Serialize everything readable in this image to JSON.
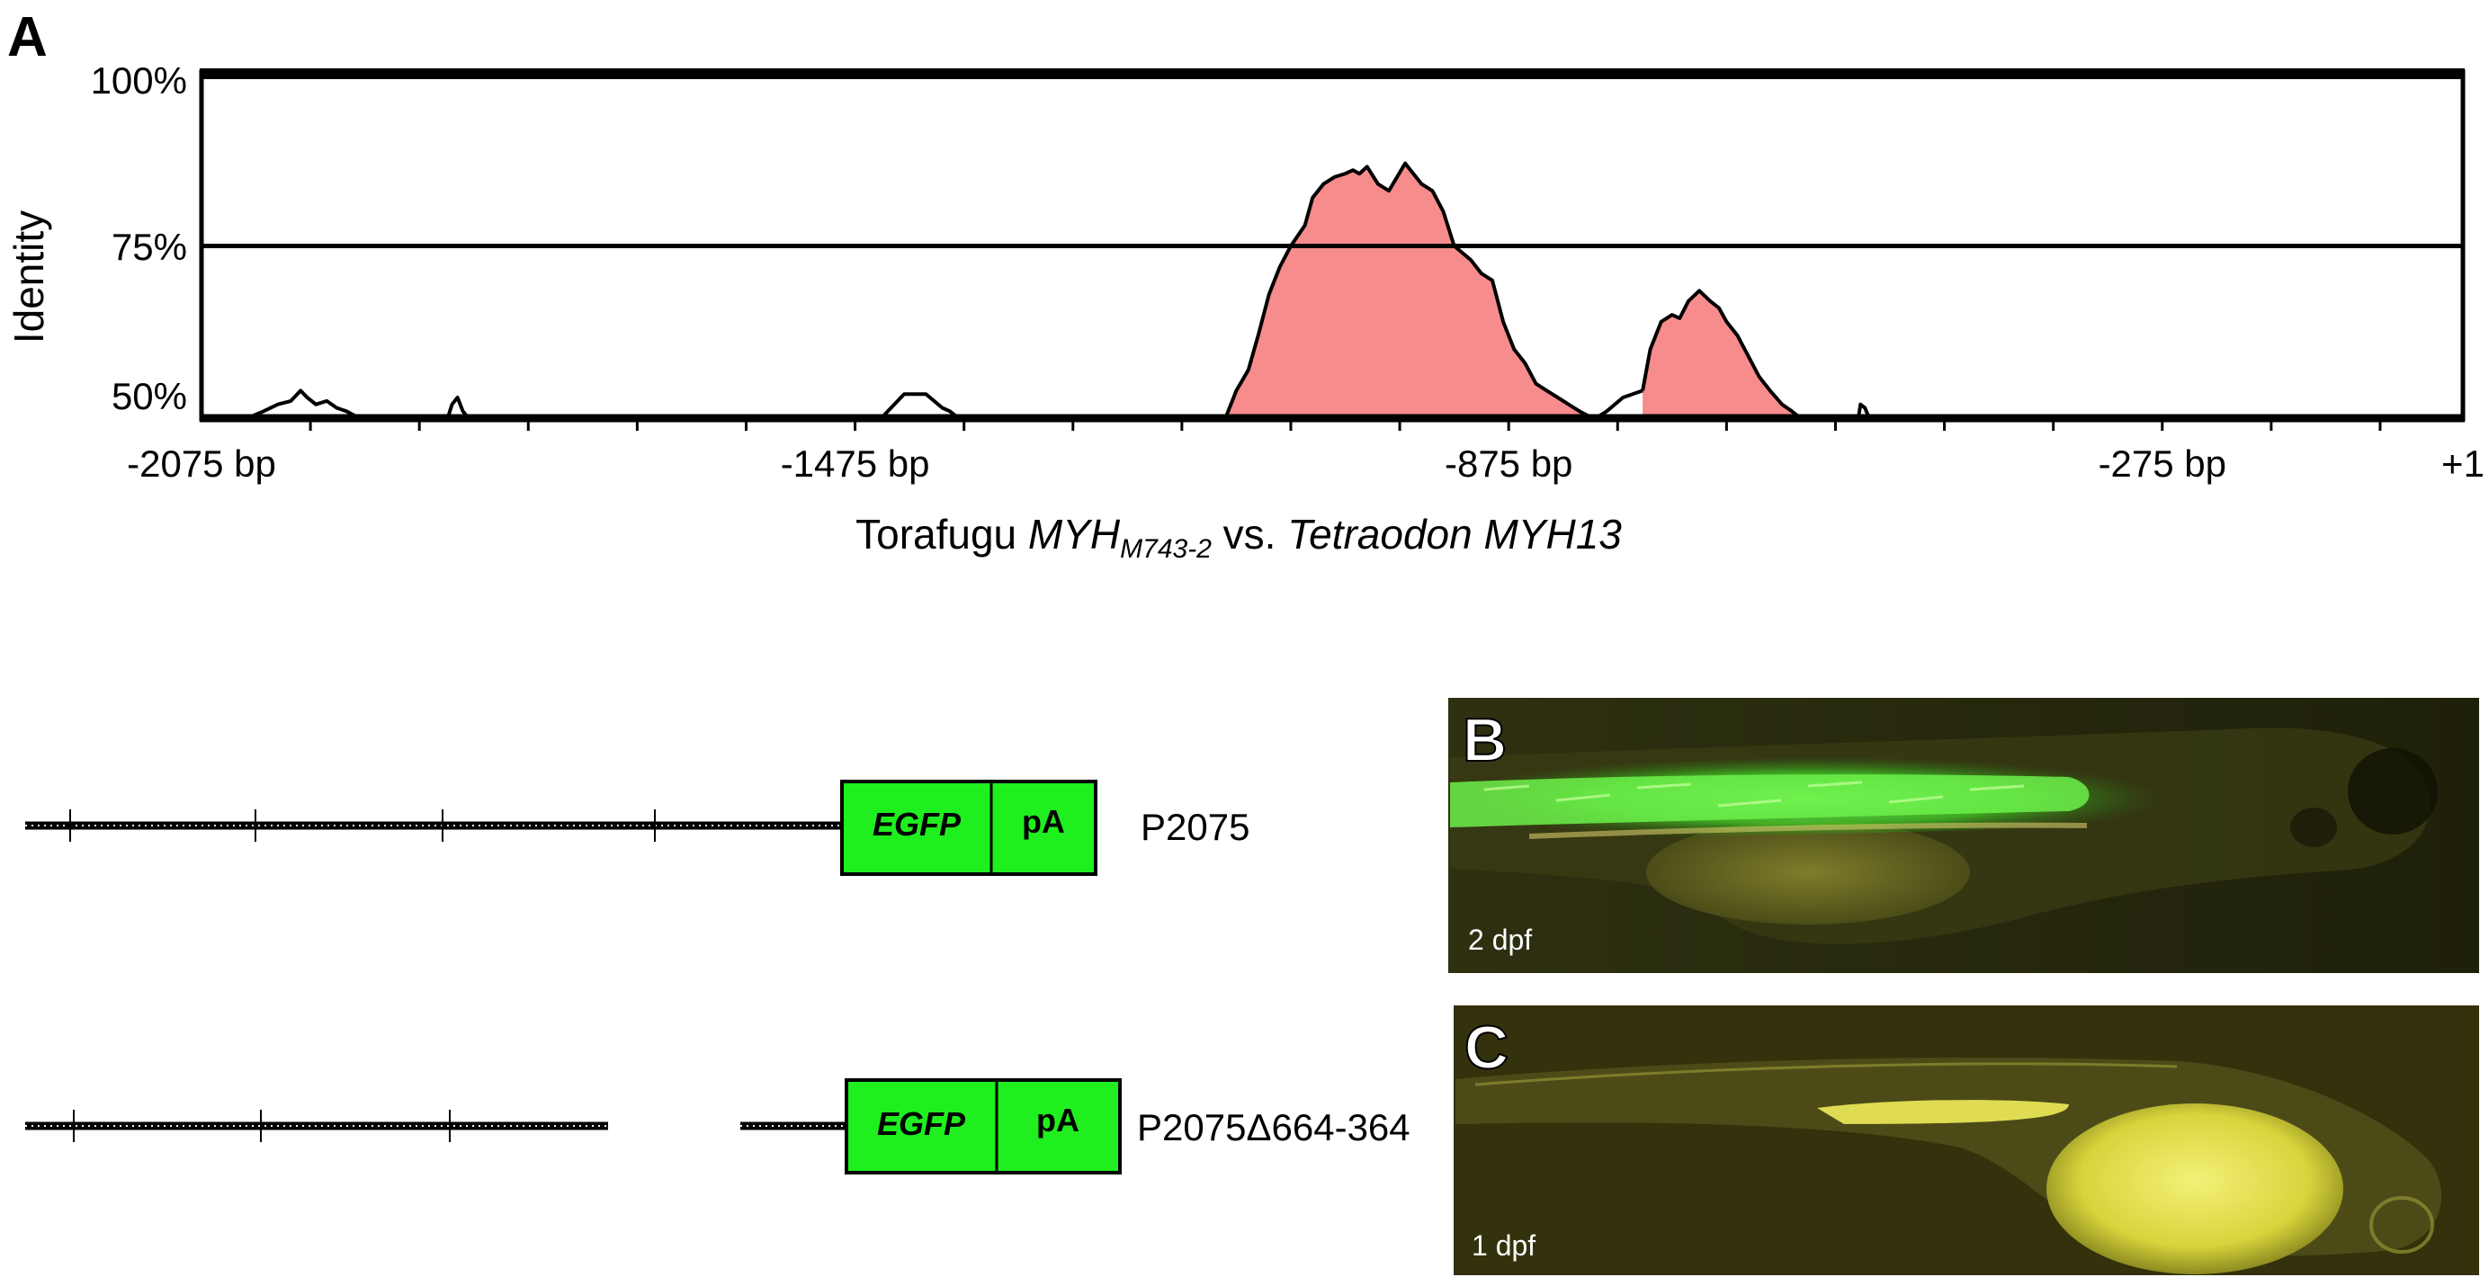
{
  "panel_a": {
    "label": "A",
    "y_axis_label": "Identity",
    "y_ticks": [
      "100%",
      "75%",
      "50%"
    ],
    "x_ticks": [
      "-2075 bp",
      "-1475 bp",
      "-875 bp",
      "-275 bp",
      "+1"
    ],
    "caption": {
      "part1": "Torafugu ",
      "part2": "MYH",
      "part3": "M743-2",
      "part4": " vs. ",
      "part5": "Tetraodon MYH13"
    }
  },
  "chart_data": {
    "type": "area",
    "x_unit": "bp",
    "xlim": [
      -2075,
      1
    ],
    "ylim": [
      50,
      100
    ],
    "reference_line_y": 75,
    "x_tick_values": [
      -2075,
      -1475,
      -875,
      -275,
      1
    ],
    "y_tick_values": [
      100,
      75,
      50
    ],
    "series": [
      {
        "conserved": false,
        "x": [
          -2033,
          -2018,
          -2005,
          -1993,
          -1984,
          -1978,
          -1970,
          -1960,
          -1951,
          -1942,
          -1930
        ],
        "values": [
          50,
          51,
          52,
          52.5,
          54,
          53,
          52,
          52.5,
          51.5,
          51,
          50
        ]
      },
      {
        "conserved": false,
        "x": [
          -1849,
          -1845,
          -1840,
          -1835,
          -1830
        ],
        "values": [
          50,
          52,
          53,
          51,
          50
        ]
      },
      {
        "conserved": false,
        "x": [
          -1451,
          -1442,
          -1430,
          -1410,
          -1395,
          -1388,
          -1380
        ],
        "values": [
          50,
          51.5,
          53.5,
          53.5,
          51.5,
          51,
          50
        ]
      },
      {
        "conserved": true,
        "x": [
          -1135,
          -1125,
          -1114,
          -1105,
          -1095,
          -1085,
          -1075,
          -1062,
          -1055,
          -1045,
          -1035,
          -1025,
          -1018,
          -1012,
          -1005,
          -995,
          -985,
          -970,
          -955,
          -945,
          -935,
          -925,
          -910,
          -900,
          -890,
          -880,
          -870,
          -860,
          -850,
          -840,
          -830,
          -820,
          -810,
          -798
        ],
        "values": [
          50,
          54,
          57,
          62,
          68,
          72,
          75,
          78,
          82,
          84,
          85,
          85.5,
          86,
          85.5,
          86.5,
          84,
          83,
          87,
          84,
          83,
          80,
          75,
          73,
          71,
          70,
          64,
          60,
          58,
          55,
          54,
          53,
          52,
          51,
          50
        ]
      },
      {
        "conserved": false,
        "x": [
          -795,
          -785,
          -770,
          -752
        ],
        "values": [
          50,
          51,
          53,
          54
        ]
      },
      {
        "conserved": true,
        "x": [
          -752,
          -745,
          -735,
          -725,
          -718,
          -710,
          -700,
          -690,
          -682,
          -675,
          -665,
          -655,
          -645,
          -635,
          -624,
          -615,
          -607
        ],
        "values": [
          54,
          60,
          64,
          65,
          64.5,
          67,
          68.5,
          67,
          66,
          64,
          62,
          59,
          56,
          54,
          52,
          51,
          50
        ]
      },
      {
        "conserved": false,
        "x": [
          -554,
          -552,
          -548,
          -544
        ],
        "values": [
          50,
          52,
          51.5,
          50
        ]
      }
    ]
  },
  "constructs": [
    {
      "label": "P2075",
      "box_labels": [
        "EGFP",
        "pA"
      ]
    },
    {
      "label": "P2075Δ664-364",
      "box_labels": [
        "EGFP",
        "pA"
      ]
    }
  ],
  "micrographs": [
    {
      "label": "B",
      "stage": "2 dpf"
    },
    {
      "label": "C",
      "stage": "1 dpf"
    }
  ],
  "colors": {
    "conserved_fill": "#f78c8c",
    "egfp_box": "#1fef1f",
    "micrograph_b_bg": "#2c2e0c",
    "micrograph_c_bg": "#31300c",
    "fluorescence_green": "#58f02c",
    "fluorescence_yellow": "#e8e43a"
  }
}
